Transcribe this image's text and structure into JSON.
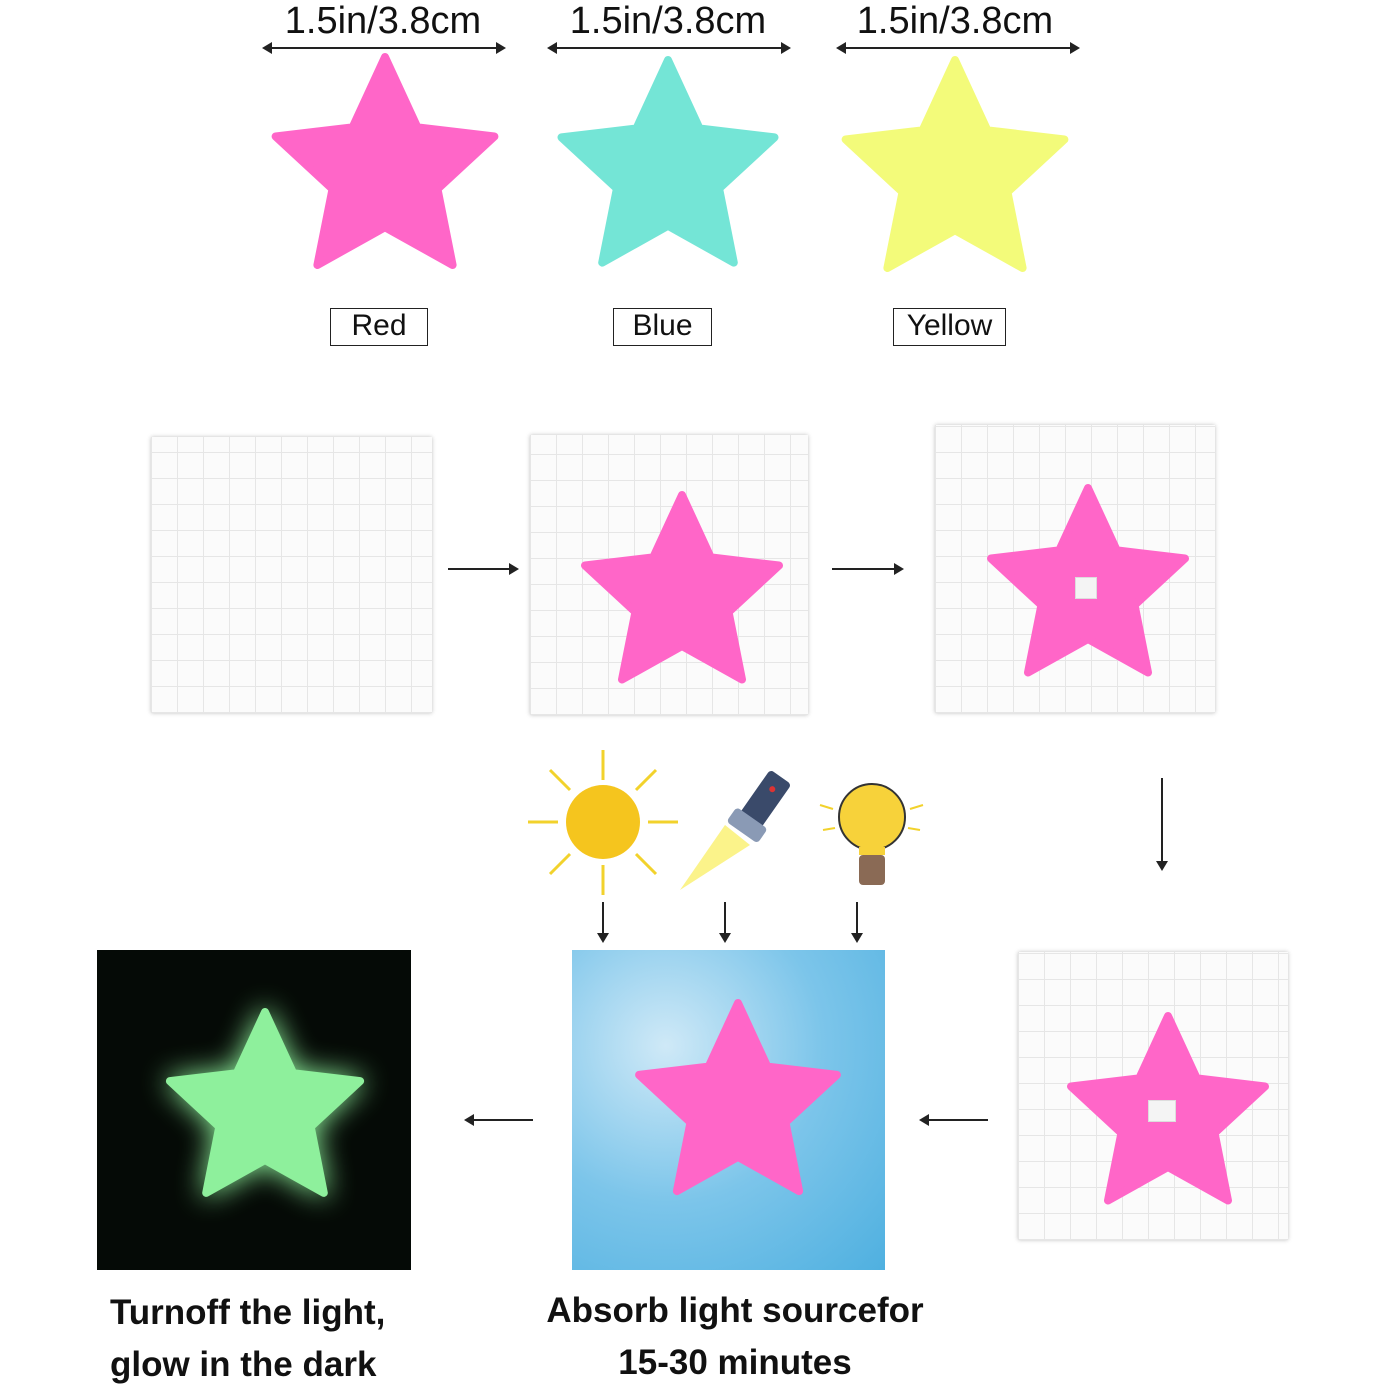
{
  "dimensions": {
    "red": "1.5in/3.8cm",
    "blue": "1.5in/3.8cm",
    "yellow": "1.5in/3.8cm"
  },
  "colors": [
    {
      "label": "Red",
      "hex": "#ff66c8"
    },
    {
      "label": "Blue",
      "hex": "#74e5d6"
    },
    {
      "label": "Yellow",
      "hex": "#f3fb7a"
    }
  ],
  "glow_color": "#8ef09c",
  "light_sources": [
    "sun-icon",
    "flashlight-icon",
    "light-bulb-icon"
  ],
  "captions": {
    "dark_line1": "Turnoff the light,",
    "dark_line2": "glow in the dark",
    "absorb_line1": "Absorb light sourcefor",
    "absorb_line2": "15-30 minutes"
  }
}
